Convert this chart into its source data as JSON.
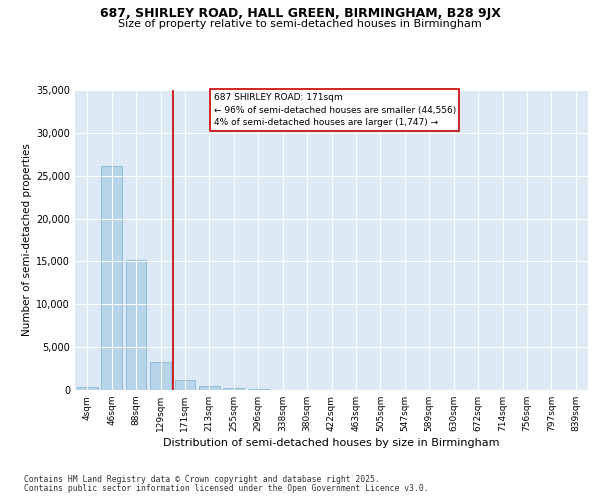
{
  "title1": "687, SHIRLEY ROAD, HALL GREEN, BIRMINGHAM, B28 9JX",
  "title2": "Size of property relative to semi-detached houses in Birmingham",
  "xlabel": "Distribution of semi-detached houses by size in Birmingham",
  "ylabel": "Number of semi-detached properties",
  "categories": [
    "4sqm",
    "46sqm",
    "88sqm",
    "129sqm",
    "171sqm",
    "213sqm",
    "255sqm",
    "296sqm",
    "338sqm",
    "380sqm",
    "422sqm",
    "463sqm",
    "505sqm",
    "547sqm",
    "589sqm",
    "630sqm",
    "672sqm",
    "714sqm",
    "756sqm",
    "797sqm",
    "839sqm"
  ],
  "values": [
    380,
    26100,
    15200,
    3300,
    1150,
    480,
    270,
    120,
    0,
    0,
    0,
    0,
    0,
    0,
    0,
    0,
    0,
    0,
    0,
    0,
    0
  ],
  "bar_color": "#b8d4e8",
  "bar_edge_color": "#7aaed4",
  "property_bar_index": 4,
  "annotation_title": "687 SHIRLEY ROAD: 171sqm",
  "annotation_line1": "← 96% of semi-detached houses are smaller (44,556)",
  "annotation_line2": "4% of semi-detached houses are larger (1,747) →",
  "annotation_box_color": "#ffffff",
  "annotation_box_edge": "#cc0000",
  "vline_color": "#cc0000",
  "ylim": [
    0,
    35000
  ],
  "yticks": [
    0,
    5000,
    10000,
    15000,
    20000,
    25000,
    30000,
    35000
  ],
  "footnote1": "Contains HM Land Registry data © Crown copyright and database right 2025.",
  "footnote2": "Contains public sector information licensed under the Open Government Licence v3.0.",
  "bg_color": "#ddeaf5",
  "fig_bg_color": "#ffffff",
  "title1_fontsize": 9,
  "title2_fontsize": 8
}
